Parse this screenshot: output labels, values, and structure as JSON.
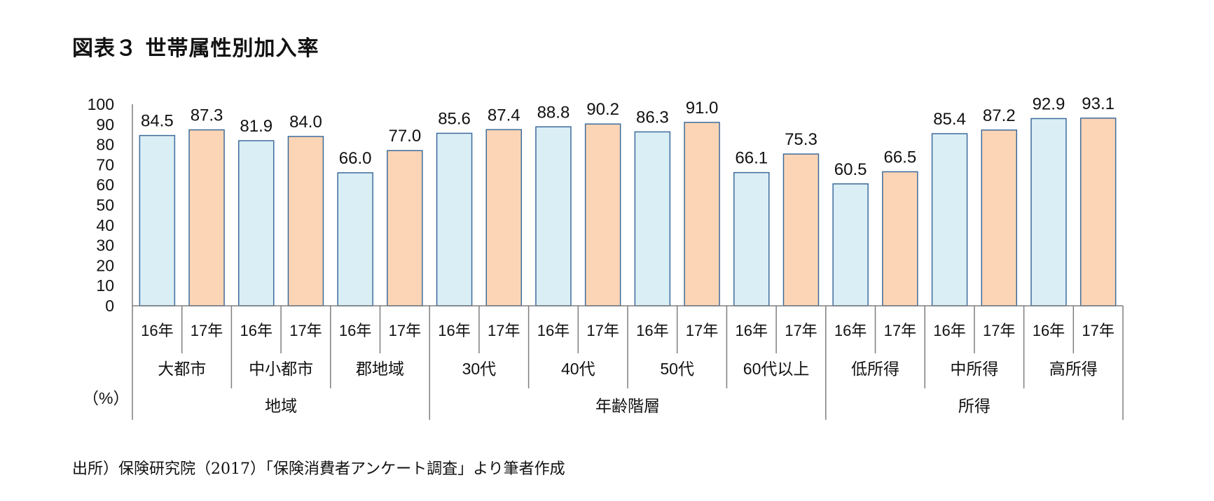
{
  "title": "図表３ 世帯属性別加入率",
  "source": "出所）保険研究院（2017）「保険消費者アンケート調査」より筆者作成",
  "colors": {
    "bar_16": "#daeef5",
    "bar_17": "#fbd5b5",
    "bar_stroke": "#3d6b9c",
    "axis": "#7f7f7f"
  },
  "chart_data": {
    "type": "bar",
    "ylabel": "（%）",
    "ylim": [
      0,
      100
    ],
    "yticks": [
      0,
      10,
      20,
      30,
      40,
      50,
      60,
      70,
      80,
      90,
      100
    ],
    "grid": false,
    "legend": "none",
    "year_labels": [
      "16年",
      "17年"
    ],
    "groups": [
      {
        "name": "地域",
        "categories": [
          {
            "name": "大都市",
            "values": [
              84.5,
              87.3
            ]
          },
          {
            "name": "中小都市",
            "values": [
              81.9,
              84.0
            ]
          },
          {
            "name": "郡地域",
            "values": [
              66.0,
              77.0
            ]
          }
        ]
      },
      {
        "name": "年齢階層",
        "categories": [
          {
            "name": "30代",
            "values": [
              85.6,
              87.4
            ]
          },
          {
            "name": "40代",
            "values": [
              88.8,
              90.2
            ]
          },
          {
            "name": "50代",
            "values": [
              86.3,
              91.0
            ]
          },
          {
            "name": "60代以上",
            "values": [
              66.1,
              75.3
            ]
          }
        ]
      },
      {
        "name": "所得",
        "categories": [
          {
            "name": "低所得",
            "values": [
              60.5,
              66.5
            ]
          },
          {
            "name": "中所得",
            "values": [
              85.4,
              87.2
            ]
          },
          {
            "name": "高所得",
            "values": [
              92.9,
              93.1
            ]
          }
        ]
      }
    ]
  }
}
